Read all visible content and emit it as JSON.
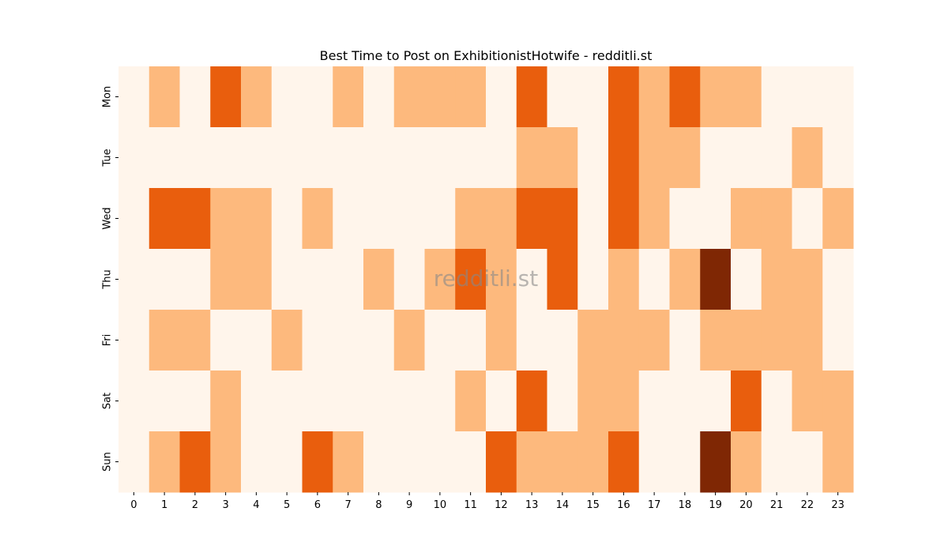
{
  "chart_data": {
    "type": "heatmap",
    "title": "Best Time to Post on ExhibitionistHotwife - redditli.st",
    "watermark": "redditli.st",
    "x_categories": [
      "0",
      "1",
      "2",
      "3",
      "4",
      "5",
      "6",
      "7",
      "8",
      "9",
      "10",
      "11",
      "12",
      "13",
      "14",
      "15",
      "16",
      "17",
      "18",
      "19",
      "20",
      "21",
      "22",
      "23"
    ],
    "y_categories": [
      "Mon",
      "Tue",
      "Wed",
      "Thu",
      "Fri",
      "Sat",
      "Sun"
    ],
    "levels": [
      0,
      1,
      2,
      3
    ],
    "colors": [
      "#fff5eb",
      "#fdb97d",
      "#e95e0d",
      "#7f2704"
    ],
    "values": [
      [
        0,
        1,
        0,
        2,
        1,
        0,
        0,
        1,
        0,
        1,
        1,
        1,
        0,
        2,
        0,
        0,
        2,
        1,
        2,
        1,
        1,
        0,
        0,
        0
      ],
      [
        0,
        0,
        0,
        0,
        0,
        0,
        0,
        0,
        0,
        0,
        0,
        0,
        0,
        1,
        1,
        0,
        2,
        1,
        1,
        0,
        0,
        0,
        1,
        0
      ],
      [
        0,
        2,
        2,
        1,
        1,
        0,
        1,
        0,
        0,
        0,
        0,
        1,
        1,
        2,
        2,
        0,
        2,
        1,
        0,
        0,
        1,
        1,
        0,
        1
      ],
      [
        0,
        0,
        0,
        1,
        1,
        0,
        0,
        0,
        1,
        0,
        1,
        2,
        1,
        0,
        2,
        0,
        1,
        0,
        1,
        3,
        0,
        1,
        1,
        0
      ],
      [
        0,
        1,
        1,
        0,
        0,
        1,
        0,
        0,
        0,
        1,
        0,
        0,
        1,
        0,
        0,
        1,
        1,
        1,
        0,
        1,
        1,
        1,
        1,
        0
      ],
      [
        0,
        0,
        0,
        1,
        0,
        0,
        0,
        0,
        0,
        0,
        0,
        1,
        0,
        2,
        0,
        1,
        1,
        0,
        0,
        0,
        2,
        0,
        1,
        1
      ],
      [
        0,
        1,
        2,
        1,
        0,
        0,
        2,
        1,
        0,
        0,
        0,
        0,
        2,
        1,
        1,
        1,
        2,
        0,
        0,
        3,
        1,
        0,
        0,
        1
      ]
    ]
  }
}
